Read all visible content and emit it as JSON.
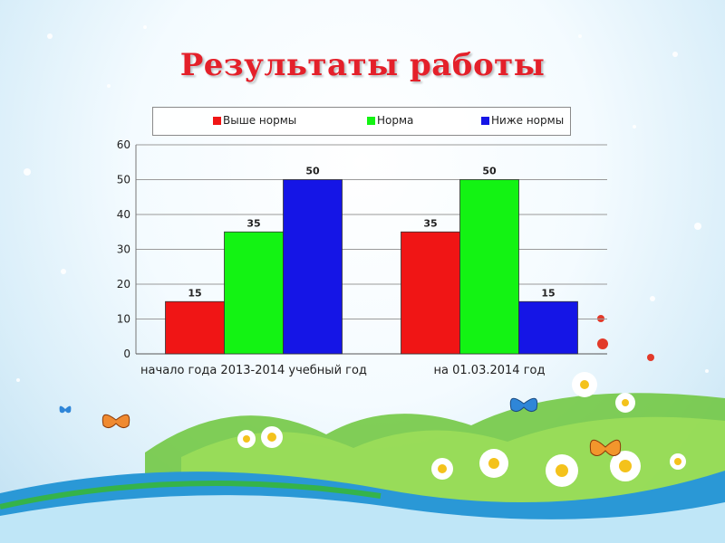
{
  "slide": {
    "title": "Результаты работы"
  },
  "colors": {
    "title": "#e4202a"
  },
  "chart_data": {
    "type": "bar",
    "categories": [
      "начало года 2013-2014 учебный год",
      "на 01.03.2014 год"
    ],
    "series": [
      {
        "name": "Выше нормы",
        "color": "#f01515",
        "values": [
          15,
          35
        ]
      },
      {
        "name": "Норма",
        "color": "#13f313",
        "values": [
          35,
          50
        ]
      },
      {
        "name": "Ниже нормы",
        "color": "#1515e6",
        "values": [
          50,
          15
        ]
      }
    ],
    "ylim": [
      0,
      60
    ],
    "yticks": [
      0,
      10,
      20,
      30,
      40,
      50,
      60
    ],
    "grid": true,
    "legend_position": "top",
    "data_labels": true
  }
}
